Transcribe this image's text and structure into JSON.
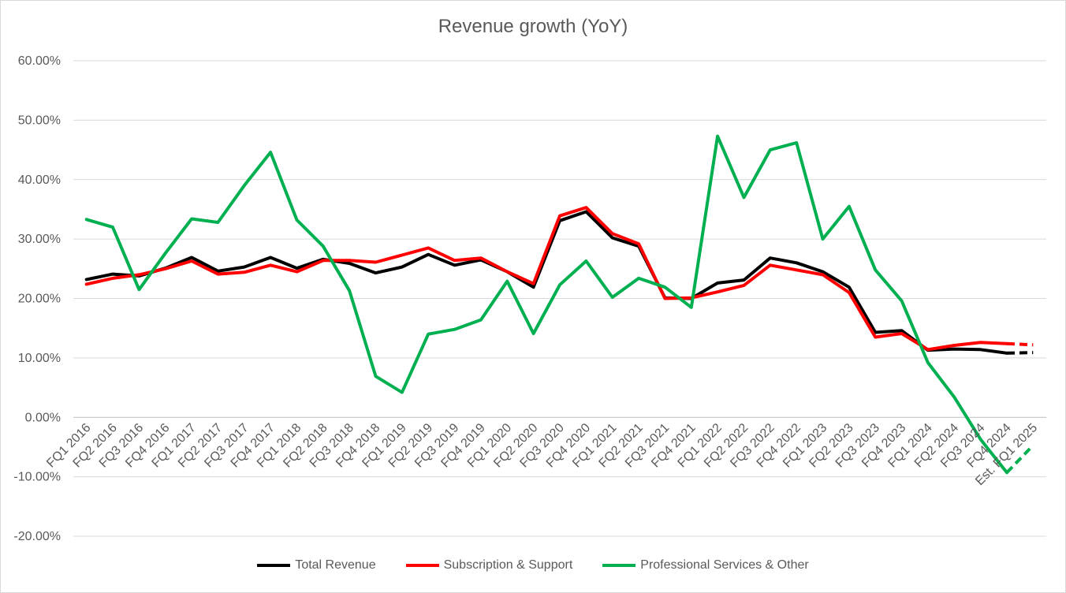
{
  "chart_data": {
    "type": "line",
    "title": "Revenue growth (YoY)",
    "xlabel": "",
    "ylabel": "",
    "ylim": [
      -0.2,
      0.6
    ],
    "yticks": [
      {
        "value": -0.2,
        "label": "-20.00%"
      },
      {
        "value": -0.1,
        "label": "-10.00%"
      },
      {
        "value": 0.0,
        "label": "0.00%"
      },
      {
        "value": 0.1,
        "label": "10.00%"
      },
      {
        "value": 0.2,
        "label": "20.00%"
      },
      {
        "value": 0.3,
        "label": "30.00%"
      },
      {
        "value": 0.4,
        "label": "40.00%"
      },
      {
        "value": 0.5,
        "label": "50.00%"
      },
      {
        "value": 0.6,
        "label": "60.00%"
      }
    ],
    "grid": true,
    "legend_position": "bottom",
    "categories": [
      "FQ1 2016",
      "FQ2 2016",
      "FQ3 2016",
      "FQ4 2016",
      "FQ1 2017",
      "FQ2 2017",
      "FQ3 2017",
      "FQ4 2017",
      "FQ1 2018",
      "FQ2 2018",
      "FQ3 2018",
      "FQ4 2018",
      "FQ1 2019",
      "FQ2 2019",
      "FQ3 2019",
      "FQ4 2019",
      "FQ1 2020",
      "FQ2 2020",
      "FQ3 2020",
      "FQ4 2020",
      "FQ1 2021",
      "FQ2 2021",
      "FQ3 2021",
      "FQ4 2021",
      "FQ1 2022",
      "FQ2 2022",
      "FQ3 2022",
      "FQ4 2022",
      "FQ1 2023",
      "FQ2 2023",
      "FQ3 2023",
      "FQ4 2023",
      "FQ1 2024",
      "FQ2 2024",
      "FQ3 2024",
      "FQ4 2024",
      "Est. FQ1 2025"
    ],
    "estimate_from_index": 35,
    "series": [
      {
        "name": "Total Revenue",
        "color": "#000000",
        "values": [
          0.232,
          0.241,
          0.238,
          0.251,
          0.269,
          0.246,
          0.253,
          0.269,
          0.251,
          0.266,
          0.259,
          0.243,
          0.253,
          0.274,
          0.256,
          0.265,
          0.245,
          0.219,
          0.331,
          0.346,
          0.302,
          0.288,
          0.201,
          0.2,
          0.226,
          0.231,
          0.268,
          0.26,
          0.245,
          0.219,
          0.143,
          0.146,
          0.113,
          0.115,
          0.114,
          0.108,
          0.109
        ]
      },
      {
        "name": "Subscription & Support",
        "color": "#ff0000",
        "values": [
          0.224,
          0.234,
          0.24,
          0.25,
          0.263,
          0.241,
          0.244,
          0.256,
          0.245,
          0.264,
          0.264,
          0.261,
          0.273,
          0.285,
          0.264,
          0.268,
          0.245,
          0.225,
          0.339,
          0.353,
          0.309,
          0.292,
          0.2,
          0.201,
          0.211,
          0.222,
          0.256,
          0.248,
          0.24,
          0.21,
          0.135,
          0.141,
          0.114,
          0.121,
          0.126,
          0.124,
          0.122
        ]
      },
      {
        "name": "Professional Services & Other",
        "color": "#00b050",
        "values": [
          0.333,
          0.32,
          0.215,
          0.276,
          0.334,
          0.328,
          0.39,
          0.446,
          0.332,
          0.288,
          0.213,
          0.069,
          0.042,
          0.14,
          0.148,
          0.164,
          0.229,
          0.141,
          0.223,
          0.263,
          0.202,
          0.234,
          0.219,
          0.185,
          0.473,
          0.37,
          0.45,
          0.462,
          0.3,
          0.355,
          0.248,
          0.196,
          0.092,
          0.034,
          -0.037,
          -0.093,
          -0.047
        ]
      }
    ]
  }
}
